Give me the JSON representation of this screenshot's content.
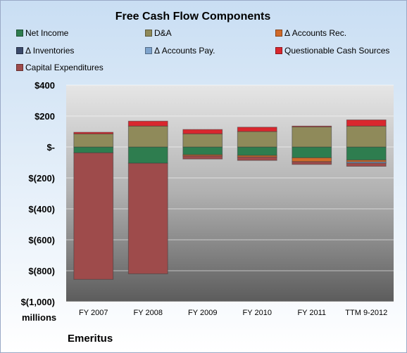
{
  "company": "Emeritus",
  "chart_data": {
    "type": "bar",
    "stacked": true,
    "title": "Free Cash Flow Components",
    "units_label": "millions",
    "categories": [
      "FY 2007",
      "FY 2008",
      "FY 2009",
      "FY 2010",
      "FY 2011",
      "TTM 9-2012"
    ],
    "ylim": [
      -1000,
      400
    ],
    "yticks": [
      400,
      200,
      0,
      -200,
      -400,
      -600,
      -800,
      -1000
    ],
    "ytick_labels": [
      "$400",
      "$200",
      "$-",
      "$(200)",
      "$(400)",
      "$(600)",
      "$(800)",
      "$(1,000)"
    ],
    "grid": true,
    "legend_position": "top",
    "series": [
      {
        "name": "Net Income",
        "color": "#2e7d4f",
        "values": [
          -38,
          -105,
          -50,
          -55,
          -70,
          -85
        ]
      },
      {
        "name": "D&A",
        "color": "#8f8a5a",
        "values": [
          85,
          135,
          85,
          100,
          130,
          135
        ]
      },
      {
        "name": "Δ Accounts Rec.",
        "color": "#d06a2a",
        "values": [
          0,
          0,
          -8,
          -10,
          -25,
          -12
        ]
      },
      {
        "name": "Δ Inventories",
        "color": "#3b4a6b",
        "values": [
          0,
          0,
          0,
          0,
          0,
          0
        ]
      },
      {
        "name": "Δ Accounts Pay.",
        "color": "#7ea3cc",
        "values": [
          0,
          0,
          0,
          0,
          0,
          -8
        ]
      },
      {
        "name": "Questionable Cash Sources",
        "color": "#d9272e",
        "values": [
          10,
          32,
          28,
          28,
          5,
          40
        ]
      },
      {
        "name": "Capital Expenditures",
        "color": "#9e4b4b",
        "values": [
          -818,
          -715,
          -20,
          -22,
          -18,
          -20
        ]
      }
    ]
  }
}
